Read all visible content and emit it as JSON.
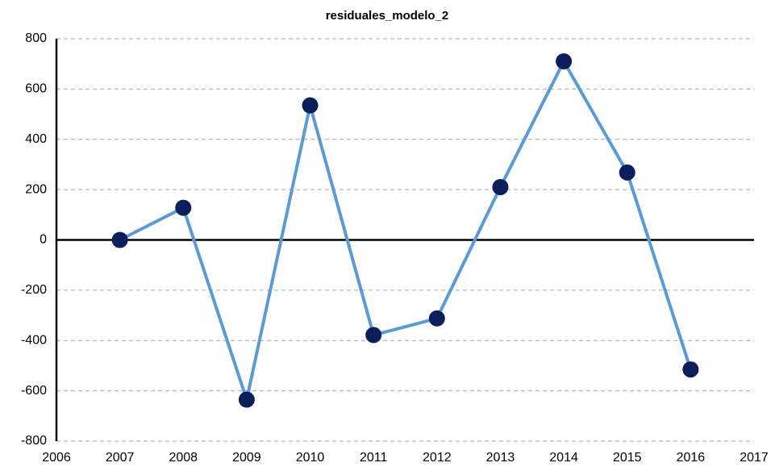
{
  "chart_data": {
    "type": "line",
    "title": "residuales_modelo_2",
    "x": [
      2007,
      2008,
      2009,
      2010,
      2011,
      2012,
      2013,
      2014,
      2015,
      2016
    ],
    "series": [
      {
        "color": "#5b9bd5",
        "marker_color": "#0c1f5b",
        "values": [
          0,
          128,
          -635,
          535,
          -378,
          -312,
          210,
          710,
          268,
          -515
        ]
      }
    ],
    "xlim": [
      2006,
      2017
    ],
    "xticks": [
      2006,
      2007,
      2008,
      2009,
      2010,
      2011,
      2012,
      2013,
      2014,
      2015,
      2016,
      2017
    ],
    "ylim": [
      -800,
      800
    ],
    "yticks": [
      -800,
      -600,
      -400,
      -200,
      0,
      200,
      400,
      600,
      800
    ],
    "grid": true
  }
}
